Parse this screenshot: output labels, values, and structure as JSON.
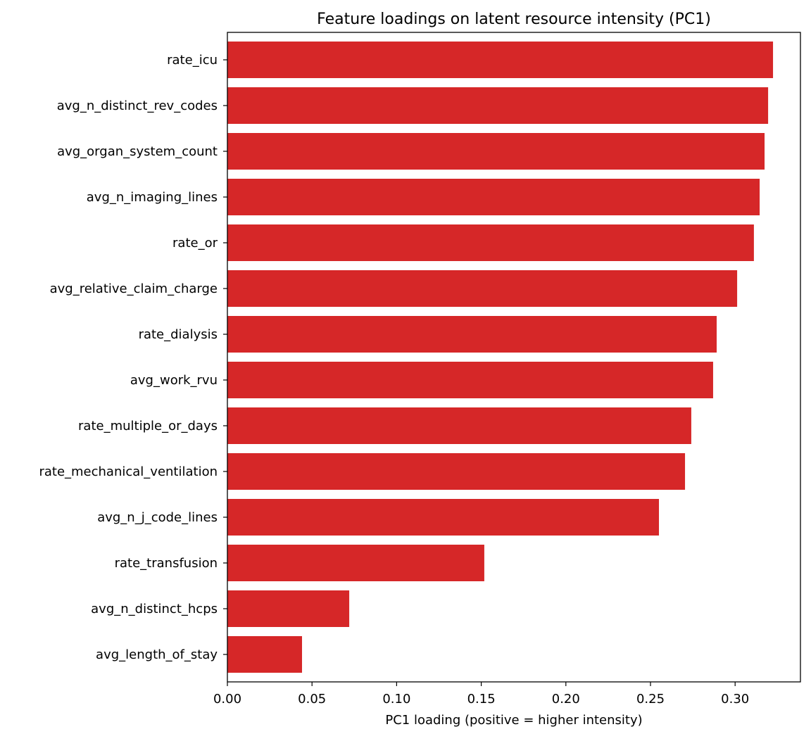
{
  "chart_data": {
    "type": "bar",
    "orientation": "horizontal",
    "title": "Feature loadings on latent resource intensity (PC1)",
    "xlabel": "PC1 loading (positive = higher intensity)",
    "ylabel": "",
    "xlim": [
      0,
      0.3386
    ],
    "xticks": [
      "0.00",
      "0.05",
      "0.10",
      "0.15",
      "0.20",
      "0.25",
      "0.30"
    ],
    "grid": false,
    "bar_color": "#d62728",
    "categories": [
      "rate_icu",
      "avg_n_distinct_rev_codes",
      "avg_organ_system_count",
      "avg_n_imaging_lines",
      "rate_or",
      "avg_relative_claim_charge",
      "rate_dialysis",
      "avg_work_rvu",
      "rate_multiple_or_days",
      "rate_mechanical_ventilation",
      "avg_n_j_code_lines",
      "rate_transfusion",
      "avg_n_distinct_hcps",
      "avg_length_of_stay"
    ],
    "values": [
      0.3224,
      0.3195,
      0.3174,
      0.3145,
      0.3111,
      0.3012,
      0.2891,
      0.287,
      0.2741,
      0.2704,
      0.255,
      0.1518,
      0.072,
      0.0441
    ]
  }
}
